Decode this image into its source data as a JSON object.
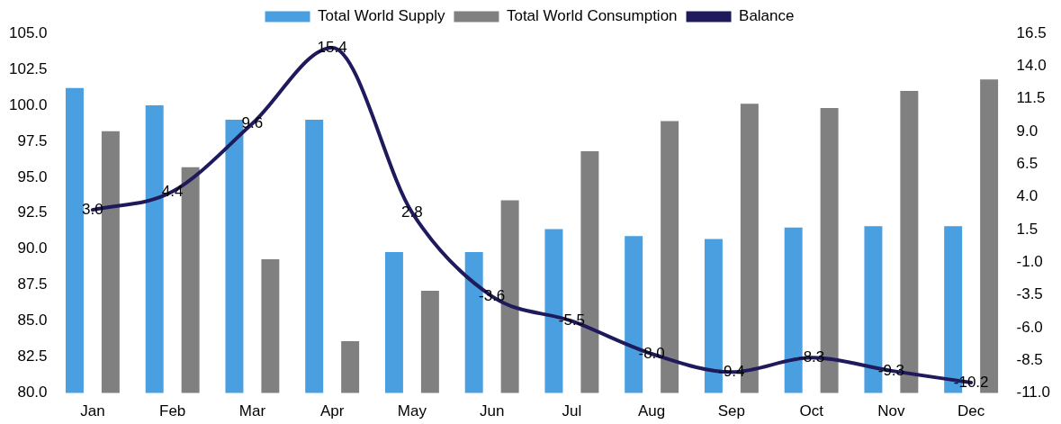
{
  "chart_data": {
    "type": "bar",
    "categories": [
      "Jan",
      "Feb",
      "Mar",
      "Apr",
      "May",
      "Jun",
      "Jul",
      "Aug",
      "Sep",
      "Oct",
      "Nov",
      "Dec"
    ],
    "series": [
      {
        "name": "Total World Supply",
        "color": "#4a9fe0",
        "values": [
          101.2,
          100.0,
          99.0,
          99.0,
          89.8,
          89.8,
          91.4,
          90.9,
          90.7,
          91.5,
          91.6,
          91.6
        ]
      },
      {
        "name": "Total World Consumption",
        "color": "#808080",
        "values": [
          98.2,
          95.7,
          89.3,
          83.6,
          87.1,
          93.4,
          96.8,
          98.9,
          100.1,
          99.8,
          101.0,
          101.8
        ]
      },
      {
        "name": "Balance",
        "type": "line",
        "axis": "y2",
        "color": "#1f1a5c",
        "marker": "none",
        "values": [
          3.0,
          4.4,
          9.6,
          15.4,
          2.8,
          -3.6,
          -5.5,
          -8.0,
          -9.4,
          -8.3,
          -9.3,
          -10.2
        ],
        "value_labels": [
          "3.0",
          "4.4",
          "9.6",
          "15.4",
          "2.8",
          "-3.6",
          "-5.5",
          "-8.0",
          "-9.4",
          "-8.3",
          "-9.3",
          "-10.2"
        ]
      }
    ],
    "ylim": [
      80,
      105
    ],
    "yticks": [
      {
        "value": 80,
        "label": "80.0"
      },
      {
        "value": 82.5,
        "label": "82.5"
      },
      {
        "value": 85,
        "label": "85.0"
      },
      {
        "value": 87.5,
        "label": "87.5"
      },
      {
        "value": 90,
        "label": "90.0"
      },
      {
        "value": 92.5,
        "label": "92.5"
      },
      {
        "value": 95,
        "label": "95.0"
      },
      {
        "value": 97.5,
        "label": "97.5"
      },
      {
        "value": 100,
        "label": "100.0"
      },
      {
        "value": 102.5,
        "label": "102.5"
      },
      {
        "value": 105,
        "label": "105.0"
      }
    ],
    "y2lim": [
      -11,
      16.5
    ],
    "y2ticks": [
      {
        "value": -11,
        "label": "-11.0"
      },
      {
        "value": -8.5,
        "label": "-8.5"
      },
      {
        "value": -6,
        "label": "-6.0"
      },
      {
        "value": -3.5,
        "label": "-3.5"
      },
      {
        "value": -1,
        "label": "-1.0"
      },
      {
        "value": 1.5,
        "label": "1.5"
      },
      {
        "value": 4,
        "label": "4.0"
      },
      {
        "value": 6.5,
        "label": "6.5"
      },
      {
        "value": 9,
        "label": "9.0"
      },
      {
        "value": 11.5,
        "label": "11.5"
      },
      {
        "value": 14,
        "label": "14.0"
      },
      {
        "value": 16.5,
        "label": "16.5"
      }
    ],
    "grid": false,
    "legend": "top"
  }
}
